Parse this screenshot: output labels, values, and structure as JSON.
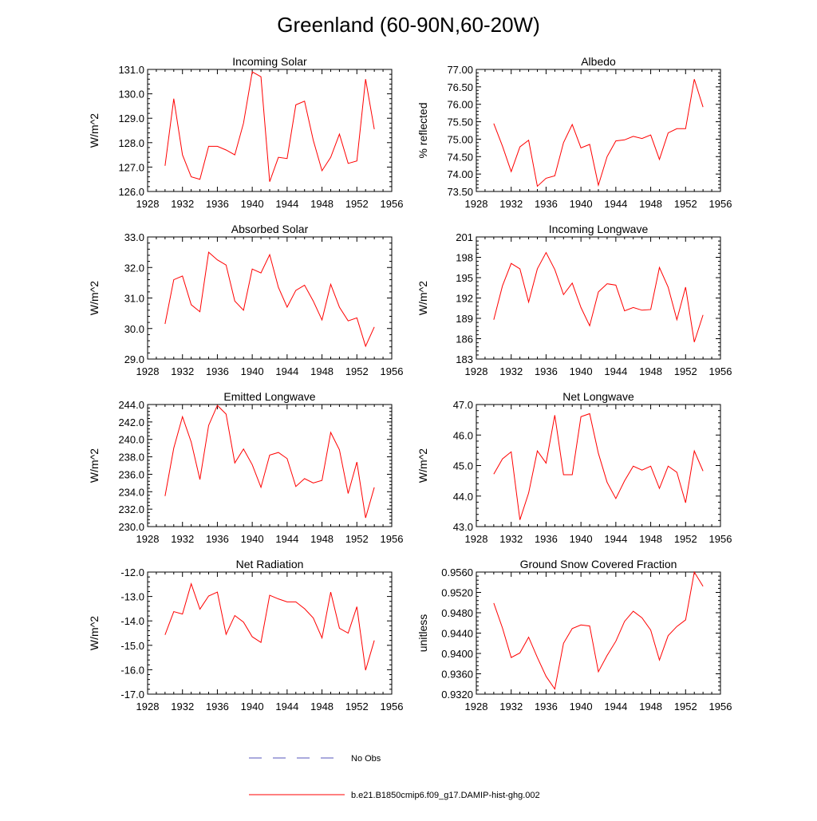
{
  "figure": {
    "title": "Greenland (60-90N,60-20W)"
  },
  "legend": {
    "items": [
      {
        "label": "No Obs",
        "color": "#5555bb",
        "style": "dashed"
      },
      {
        "label": "b.e21.B1850cmip6.f09_g17.DAMIP-hist-ghg.002",
        "color": "#ff0000",
        "style": "solid"
      }
    ]
  },
  "chart_data": [
    {
      "type": "line",
      "title": "Incoming Solar",
      "ylabel": "W/m^2",
      "xlim": [
        1928,
        1956
      ],
      "ylim": [
        126.0,
        131.0
      ],
      "xticks": [
        "1928",
        "1932",
        "1936",
        "1940",
        "1944",
        "1948",
        "1952",
        "1956"
      ],
      "yticks": [
        "126.0",
        "127.0",
        "128.0",
        "129.0",
        "130.0",
        "131.0"
      ],
      "series": [
        {
          "color": "#ff0000",
          "x": [
            1930,
            1931,
            1932,
            1933,
            1934,
            1935,
            1936,
            1937,
            1938,
            1939,
            1940,
            1941,
            1942,
            1943,
            1944,
            1945,
            1946,
            1947,
            1948,
            1949,
            1950,
            1951,
            1952,
            1953,
            1954
          ],
          "values": [
            127.05,
            129.8,
            127.5,
            126.6,
            126.5,
            127.85,
            127.85,
            127.7,
            127.5,
            128.8,
            130.9,
            130.7,
            126.4,
            127.4,
            127.35,
            129.55,
            129.7,
            128.1,
            126.85,
            127.4,
            128.35,
            127.15,
            127.25,
            130.6,
            128.55
          ]
        }
      ]
    },
    {
      "type": "line",
      "title": "Albedo",
      "ylabel": "% reflected",
      "xlim": [
        1928,
        1956
      ],
      "ylim": [
        73.5,
        77.0
      ],
      "xticks": [
        "1928",
        "1932",
        "1936",
        "1940",
        "1944",
        "1948",
        "1952",
        "1956"
      ],
      "yticks": [
        "73.50",
        "74.00",
        "74.50",
        "75.00",
        "75.50",
        "76.00",
        "76.50",
        "77.00"
      ],
      "series": [
        {
          "color": "#ff0000",
          "x": [
            1930,
            1931,
            1932,
            1933,
            1934,
            1935,
            1936,
            1937,
            1938,
            1939,
            1940,
            1941,
            1942,
            1943,
            1944,
            1945,
            1946,
            1947,
            1948,
            1949,
            1950,
            1951,
            1952,
            1953,
            1954
          ],
          "values": [
            75.45,
            74.8,
            74.07,
            74.78,
            74.97,
            73.65,
            73.88,
            73.95,
            74.9,
            75.42,
            74.75,
            74.85,
            73.68,
            74.5,
            74.95,
            74.98,
            75.08,
            75.02,
            75.12,
            74.42,
            75.18,
            75.3,
            75.3,
            76.72,
            75.92
          ]
        }
      ]
    },
    {
      "type": "line",
      "title": "Absorbed Solar",
      "ylabel": "W/m^2",
      "xlim": [
        1928,
        1956
      ],
      "ylim": [
        29.0,
        33.0
      ],
      "xticks": [
        "1928",
        "1932",
        "1936",
        "1940",
        "1944",
        "1948",
        "1952",
        "1956"
      ],
      "yticks": [
        "29.0",
        "30.0",
        "31.0",
        "32.0",
        "33.0"
      ],
      "series": [
        {
          "color": "#ff0000",
          "x": [
            1930,
            1931,
            1932,
            1933,
            1934,
            1935,
            1936,
            1937,
            1938,
            1939,
            1940,
            1941,
            1942,
            1943,
            1944,
            1945,
            1946,
            1947,
            1948,
            1949,
            1950,
            1951,
            1952,
            1953,
            1954
          ],
          "values": [
            30.15,
            31.6,
            31.72,
            30.78,
            30.55,
            32.5,
            32.25,
            32.08,
            30.9,
            30.6,
            31.95,
            31.82,
            32.42,
            31.35,
            30.7,
            31.25,
            31.42,
            30.9,
            30.28,
            31.45,
            30.7,
            30.25,
            30.35,
            29.42,
            30.05
          ]
        }
      ]
    },
    {
      "type": "line",
      "title": "Incoming Longwave",
      "ylabel": "W/m^2",
      "xlim": [
        1928,
        1956
      ],
      "ylim": [
        183,
        201
      ],
      "xticks": [
        "1928",
        "1932",
        "1936",
        "1940",
        "1944",
        "1948",
        "1952",
        "1956"
      ],
      "yticks": [
        "183",
        "186",
        "189",
        "192",
        "195",
        "198",
        "201"
      ],
      "series": [
        {
          "color": "#ff0000",
          "x": [
            1930,
            1931,
            1932,
            1933,
            1934,
            1935,
            1936,
            1937,
            1938,
            1939,
            1940,
            1941,
            1942,
            1943,
            1944,
            1945,
            1946,
            1947,
            1948,
            1949,
            1950,
            1951,
            1952,
            1953,
            1954
          ],
          "values": [
            188.8,
            193.8,
            197.1,
            196.3,
            191.4,
            196.3,
            198.7,
            196.2,
            192.5,
            194.2,
            190.6,
            187.9,
            192.9,
            194.1,
            193.9,
            190.1,
            190.6,
            190.2,
            190.3,
            196.5,
            193.6,
            188.8,
            193.6,
            185.5,
            189.5
          ]
        }
      ]
    },
    {
      "type": "line",
      "title": "Emitted Longwave",
      "ylabel": "W/m^2",
      "xlim": [
        1928,
        1956
      ],
      "ylim": [
        230.0,
        244.0
      ],
      "xticks": [
        "1928",
        "1932",
        "1936",
        "1940",
        "1944",
        "1948",
        "1952",
        "1956"
      ],
      "yticks": [
        "230.0",
        "232.0",
        "234.0",
        "236.0",
        "238.0",
        "240.0",
        "242.0",
        "244.0"
      ],
      "series": [
        {
          "color": "#ff0000",
          "x": [
            1930,
            1931,
            1932,
            1933,
            1934,
            1935,
            1936,
            1937,
            1938,
            1939,
            1940,
            1941,
            1942,
            1943,
            1944,
            1945,
            1946,
            1947,
            1948,
            1949,
            1950,
            1951,
            1952,
            1953,
            1954
          ],
          "values": [
            233.5,
            239.0,
            242.6,
            239.7,
            235.4,
            241.6,
            243.9,
            242.9,
            237.3,
            238.9,
            237.1,
            234.5,
            238.2,
            238.5,
            237.8,
            234.6,
            235.5,
            235.0,
            235.3,
            240.8,
            238.8,
            233.8,
            237.4,
            231.0,
            234.5
          ]
        }
      ]
    },
    {
      "type": "line",
      "title": "Net Longwave",
      "ylabel": "W/m^2",
      "xlim": [
        1928,
        1956
      ],
      "ylim": [
        43.0,
        47.0
      ],
      "xticks": [
        "1928",
        "1932",
        "1936",
        "1940",
        "1944",
        "1948",
        "1952",
        "1956"
      ],
      "yticks": [
        "43.0",
        "44.0",
        "45.0",
        "46.0",
        "47.0"
      ],
      "series": [
        {
          "color": "#ff0000",
          "x": [
            1930,
            1931,
            1932,
            1933,
            1934,
            1935,
            1936,
            1937,
            1938,
            1939,
            1940,
            1941,
            1942,
            1943,
            1944,
            1945,
            1946,
            1947,
            1948,
            1949,
            1950,
            1951,
            1952,
            1953,
            1954
          ],
          "values": [
            44.72,
            45.22,
            45.45,
            43.22,
            44.1,
            45.48,
            45.08,
            46.65,
            44.7,
            44.7,
            46.6,
            46.7,
            45.4,
            44.45,
            43.92,
            44.5,
            44.98,
            44.85,
            44.98,
            44.25,
            44.98,
            44.78,
            43.78,
            45.48,
            44.82
          ]
        }
      ]
    },
    {
      "type": "line",
      "title": "Net Radiation",
      "ylabel": "W/m^2",
      "xlim": [
        1928,
        1956
      ],
      "ylim": [
        -17.0,
        -12.0
      ],
      "xticks": [
        "1928",
        "1932",
        "1936",
        "1940",
        "1944",
        "1948",
        "1952",
        "1956"
      ],
      "yticks": [
        "-17.0",
        "-16.0",
        "-15.0",
        "-14.0",
        "-13.0",
        "-12.0"
      ],
      "series": [
        {
          "color": "#ff0000",
          "x": [
            1930,
            1931,
            1932,
            1933,
            1934,
            1935,
            1936,
            1937,
            1938,
            1939,
            1940,
            1941,
            1942,
            1943,
            1944,
            1945,
            1946,
            1947,
            1948,
            1949,
            1950,
            1951,
            1952,
            1953,
            1954
          ],
          "values": [
            -14.57,
            -13.62,
            -13.72,
            -12.48,
            -13.52,
            -12.98,
            -12.82,
            -14.55,
            -13.78,
            -14.05,
            -14.65,
            -14.88,
            -12.95,
            -13.1,
            -13.22,
            -13.22,
            -13.5,
            -13.88,
            -14.7,
            -12.82,
            -14.3,
            -14.5,
            -13.42,
            -16.02,
            -14.8
          ]
        }
      ]
    },
    {
      "type": "line",
      "title": "Ground Snow Covered Fraction",
      "ylabel": "unitless",
      "xlim": [
        1928,
        1956
      ],
      "ylim": [
        0.932,
        0.956
      ],
      "xticks": [
        "1928",
        "1932",
        "1936",
        "1940",
        "1944",
        "1948",
        "1952",
        "1956"
      ],
      "yticks": [
        "0.9320",
        "0.9360",
        "0.9400",
        "0.9440",
        "0.9480",
        "0.9520",
        "0.9560"
      ],
      "series": [
        {
          "color": "#ff0000",
          "x": [
            1930,
            1931,
            1932,
            1933,
            1934,
            1935,
            1936,
            1937,
            1938,
            1939,
            1940,
            1941,
            1942,
            1943,
            1944,
            1945,
            1946,
            1947,
            1948,
            1949,
            1950,
            1951,
            1952,
            1953,
            1954
          ],
          "values": [
            0.9499,
            0.945,
            0.9392,
            0.9401,
            0.9432,
            0.9392,
            0.9355,
            0.933,
            0.942,
            0.9449,
            0.9456,
            0.9454,
            0.9364,
            0.9396,
            0.9424,
            0.9463,
            0.9483,
            0.947,
            0.9446,
            0.9387,
            0.9435,
            0.9453,
            0.9466,
            0.956,
            0.9532
          ]
        }
      ]
    }
  ]
}
